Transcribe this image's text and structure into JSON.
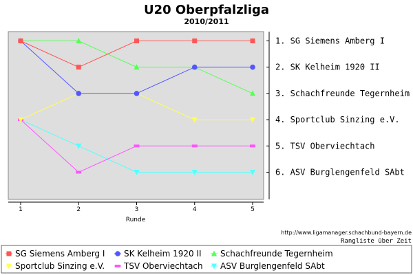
{
  "chart_data": {
    "type": "line",
    "title": "U20 Oberpfalzliga",
    "subtitle": "2010/2011",
    "xlabel": "Runde",
    "x": [
      1,
      2,
      3,
      4,
      5
    ],
    "x_ticks": [
      "1",
      "2",
      "3",
      "4",
      "5"
    ],
    "ylim": [
      1,
      6
    ],
    "y_inverted": true,
    "grid": false,
    "legend": "bottom",
    "final_ranking": [
      "1. SG Siemens Amberg I",
      "2. SK Kelheim 1920 II",
      "3. Schachfreunde Tegernheim",
      "4. Sportclub Sinzing e.V.",
      "5. TSV Oberviechtach",
      "6. ASV Burglengenfeld SAbt"
    ],
    "series": [
      {
        "name": "SG Siemens Amberg I",
        "values": [
          1,
          2,
          1,
          1,
          1
        ],
        "color": "#ff5555",
        "marker": "square"
      },
      {
        "name": "SK Kelheim 1920 II",
        "values": [
          1,
          3,
          3,
          2,
          2
        ],
        "color": "#5555ff",
        "marker": "circle"
      },
      {
        "name": "Schachfreunde Tegernheim",
        "values": [
          1,
          1,
          2,
          2,
          3
        ],
        "color": "#55ff55",
        "marker": "triangle-up"
      },
      {
        "name": "Sportclub Sinzing e.V.",
        "values": [
          4,
          3,
          3,
          4,
          4
        ],
        "color": "#ffff55",
        "marker": "triangle-down"
      },
      {
        "name": "TSV Oberviechtach",
        "values": [
          4,
          6,
          5,
          5,
          5
        ],
        "color": "#ff55ff",
        "marker": "dash"
      },
      {
        "name": "ASV Burglengenfeld SAbt",
        "values": [
          4,
          5,
          6,
          6,
          6
        ],
        "color": "#55ffff",
        "marker": "triangle-down"
      }
    ],
    "source_url": "http://www.ligamanager.schachbund-bayern.de",
    "caption": "Rangliste über Zeit"
  },
  "colors": {
    "plot_background": "#dedede",
    "frame": "#888888"
  }
}
